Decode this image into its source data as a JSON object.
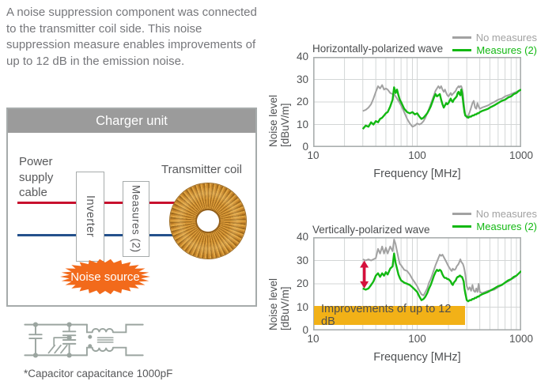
{
  "intro": {
    "text": "A noise suppression component was connected to the transmitter coil side. This noise suppression measure enables improvements of up to 12 dB in the emission noise."
  },
  "diagram": {
    "title": "Charger unit",
    "power_supply_label": "Power supply cable",
    "inverter_label": "Inverter",
    "measures_label": "Measures (2)",
    "transmitter_label": "Transmitter coil",
    "noise_source_label": "Noise source",
    "colors": {
      "header_gray": "#9b9b9b",
      "border_gray": "#a6abab",
      "wire_red": "#c8102e",
      "wire_blue": "#24518c",
      "noise_orange": "#f26a1b"
    }
  },
  "schematic": {
    "caption": "*Capacitor capacitance 1000pF",
    "line_color": "#9ba5a0"
  },
  "chart_data": [
    {
      "type": "line",
      "title": "Horizontally-polarized wave",
      "xlabel": "Frequency [MHz]",
      "ylabel": "Noise level [dBuV/m]",
      "x_scale": "log",
      "xlim": [
        10,
        1000
      ],
      "ylim": [
        0,
        40
      ],
      "x_ticks": [
        10,
        100,
        1000
      ],
      "y_ticks": [
        0,
        10,
        20,
        30,
        40
      ],
      "grid": true,
      "legend_position": "top-right",
      "grid_color": "#d3d6d6",
      "border_color": "#a9aeae",
      "series": [
        {
          "name": "No measures",
          "color": "#a2a2a2",
          "x": [
            30,
            32,
            34,
            36,
            38,
            40,
            42,
            44,
            46,
            48,
            50,
            52,
            55,
            58,
            60,
            62,
            64,
            66,
            68,
            70,
            75,
            80,
            85,
            90,
            95,
            100,
            105,
            110,
            115,
            120,
            125,
            130,
            135,
            140,
            145,
            150,
            155,
            160,
            165,
            170,
            175,
            180,
            185,
            190,
            195,
            200,
            210,
            215,
            220,
            225,
            230,
            235,
            240,
            245,
            250,
            255,
            260,
            265,
            270,
            275,
            280,
            285,
            290,
            300,
            310,
            320,
            330,
            340,
            350,
            360,
            370,
            380,
            390,
            400,
            420,
            450,
            480,
            500,
            550,
            600,
            650,
            700,
            750,
            800,
            850,
            900,
            950,
            1000
          ],
          "y": [
            16,
            16.5,
            17.5,
            19,
            21.5,
            24.5,
            27,
            26,
            27.5,
            25.5,
            26,
            25.5,
            24,
            23.5,
            23.5,
            22.5,
            21.5,
            20.5,
            19.5,
            18.5,
            15.5,
            12.5,
            10.5,
            9,
            9.5,
            10.5,
            10,
            10.5,
            11.5,
            13,
            15,
            17,
            19,
            21,
            23,
            25,
            26,
            27,
            26,
            27,
            25.5,
            24.5,
            25.5,
            24,
            23,
            22.5,
            24,
            23,
            23.5,
            24,
            24.5,
            25,
            26,
            26.5,
            27,
            26.5,
            27,
            27,
            26,
            24,
            20,
            17,
            14.5,
            13,
            14,
            15.5,
            17.5,
            19.5,
            20.5,
            17.5,
            17,
            19.5,
            18,
            17,
            17.5,
            18,
            18.5,
            19,
            20,
            21,
            21.5,
            22.5,
            23,
            23.5,
            24,
            24.5,
            25,
            25.5
          ]
        },
        {
          "name": "Measures (2)",
          "color": "#12b812",
          "x": [
            30,
            32,
            34,
            36,
            38,
            40,
            42,
            44,
            46,
            48,
            50,
            52,
            55,
            58,
            60,
            62,
            64,
            66,
            68,
            70,
            75,
            80,
            85,
            90,
            95,
            100,
            105,
            110,
            115,
            120,
            125,
            130,
            135,
            140,
            145,
            150,
            155,
            160,
            165,
            170,
            175,
            180,
            185,
            190,
            195,
            200,
            210,
            215,
            220,
            225,
            230,
            235,
            240,
            245,
            250,
            255,
            260,
            265,
            270,
            275,
            280,
            285,
            290,
            300,
            310,
            320,
            330,
            340,
            350,
            360,
            370,
            380,
            390,
            400,
            420,
            450,
            480,
            500,
            550,
            600,
            650,
            700,
            750,
            800,
            850,
            900,
            950,
            1000
          ],
          "y": [
            8,
            9.5,
            9,
            11,
            10,
            11.5,
            11,
            12.5,
            13,
            14,
            15,
            15.5,
            18,
            21,
            26.5,
            24,
            25.5,
            23,
            21,
            20,
            17,
            15.5,
            15,
            15.5,
            14.5,
            15,
            13.5,
            12.5,
            13,
            14,
            15,
            16.5,
            18,
            20,
            22,
            23.5,
            22.5,
            23,
            23.5,
            21,
            19,
            17.5,
            18.5,
            19.5,
            19,
            19.5,
            21.5,
            20.5,
            20,
            21,
            21.5,
            22,
            22.5,
            24,
            24.5,
            23.5,
            23,
            25.5,
            24,
            21,
            18,
            15.5,
            14,
            13.5,
            13,
            13.5,
            13.5,
            14,
            14,
            14.5,
            14.5,
            15,
            15,
            15.5,
            16,
            16.5,
            17,
            17.5,
            18.5,
            19.5,
            20.5,
            21,
            22,
            22.5,
            23.5,
            24,
            25,
            25.5
          ]
        }
      ]
    },
    {
      "type": "line",
      "title": "Vertically-polarized wave",
      "xlabel": "Frequency [MHz]",
      "ylabel": "Noise level [dBuV/m]",
      "x_scale": "log",
      "xlim": [
        10,
        1000
      ],
      "ylim": [
        0,
        40
      ],
      "x_ticks": [
        10,
        100,
        1000
      ],
      "y_ticks": [
        0,
        10,
        20,
        30,
        40
      ],
      "grid": true,
      "legend_position": "top-right",
      "grid_color": "#d3d6d6",
      "border_color": "#a9aeae",
      "series": [
        {
          "name": "No measures",
          "color": "#a2a2a2",
          "x": [
            30,
            32,
            34,
            36,
            38,
            40,
            42,
            44,
            46,
            48,
            50,
            52,
            55,
            58,
            60,
            62,
            64,
            66,
            68,
            70,
            75,
            80,
            85,
            90,
            95,
            100,
            105,
            110,
            115,
            120,
            125,
            130,
            135,
            140,
            145,
            150,
            155,
            160,
            165,
            170,
            175,
            180,
            185,
            190,
            195,
            200,
            210,
            215,
            220,
            225,
            230,
            235,
            240,
            245,
            250,
            255,
            260,
            265,
            270,
            275,
            280,
            285,
            290,
            300,
            310,
            320,
            330,
            340,
            350,
            360,
            370,
            380,
            390,
            400,
            420,
            450,
            480,
            500,
            550,
            600,
            650,
            700,
            750,
            800,
            850,
            900,
            950,
            1000
          ],
          "y": [
            30.5,
            30,
            30.5,
            30,
            30.5,
            31,
            35,
            33,
            36,
            33,
            35.5,
            33,
            36,
            34,
            39,
            37,
            34,
            31,
            28.5,
            28,
            26,
            25.5,
            24,
            22,
            20.5,
            19,
            17,
            15.5,
            15,
            16.5,
            18,
            20.5,
            22,
            24,
            26,
            28,
            29.5,
            31,
            32.5,
            32,
            32.5,
            31.5,
            30.5,
            29.5,
            28.5,
            27.5,
            26,
            25.5,
            26.5,
            26,
            26,
            26.5,
            27.5,
            28,
            28.5,
            29.5,
            30.5,
            29.5,
            29,
            28.5,
            27.5,
            26,
            24,
            19,
            17.5,
            18.5,
            17,
            19.5,
            17,
            16.5,
            18,
            16.5,
            20,
            16.5,
            16,
            16.5,
            17,
            17,
            17.5,
            18.5,
            19.5,
            20.5,
            21,
            22,
            22.5,
            23.5,
            24.5,
            25.5
          ]
        },
        {
          "name": "Measures (2)",
          "color": "#12b812",
          "x": [
            30,
            32,
            34,
            36,
            38,
            40,
            42,
            44,
            46,
            48,
            50,
            52,
            55,
            58,
            60,
            62,
            64,
            66,
            68,
            70,
            75,
            80,
            85,
            90,
            95,
            100,
            105,
            110,
            115,
            120,
            125,
            130,
            135,
            140,
            145,
            150,
            155,
            160,
            165,
            170,
            175,
            180,
            185,
            190,
            195,
            200,
            210,
            215,
            220,
            225,
            230,
            235,
            240,
            245,
            250,
            255,
            260,
            265,
            270,
            275,
            280,
            285,
            290,
            300,
            310,
            320,
            330,
            340,
            350,
            360,
            370,
            380,
            390,
            400,
            420,
            450,
            480,
            500,
            550,
            600,
            650,
            700,
            750,
            800,
            850,
            900,
            950,
            1000
          ],
          "y": [
            18,
            17.5,
            18,
            19.5,
            21,
            23.5,
            24.5,
            23,
            24.5,
            23.5,
            25,
            24,
            26.5,
            27.5,
            33,
            29,
            26.5,
            24,
            22.5,
            21.5,
            20.5,
            20,
            19.5,
            18.5,
            17.5,
            16.5,
            14.5,
            13,
            13.5,
            14.5,
            16,
            18,
            19.5,
            21.5,
            23.5,
            25,
            26,
            25.5,
            26,
            25.5,
            24,
            23,
            22.5,
            22.5,
            22,
            22,
            21,
            20,
            19.5,
            20.5,
            21,
            21.5,
            22.5,
            23,
            23,
            23.5,
            23.5,
            23,
            23,
            22,
            21,
            18,
            16,
            13,
            12.5,
            13,
            13,
            13.5,
            13.5,
            14,
            14,
            14.5,
            14.5,
            15,
            15.5,
            16,
            16.5,
            17,
            18,
            19,
            19.5,
            20.5,
            21.5,
            22,
            23,
            23.5,
            24.5,
            25.5
          ]
        }
      ],
      "annotations": {
        "arrow": {
          "x": 31,
          "y_from": 18,
          "y_to": 30,
          "color": "#d5103c"
        },
        "callout": {
          "text": "Improvements of up to 12 dB",
          "bg_color": "#f2b117",
          "text_color": "#4d4d4d"
        }
      }
    }
  ]
}
